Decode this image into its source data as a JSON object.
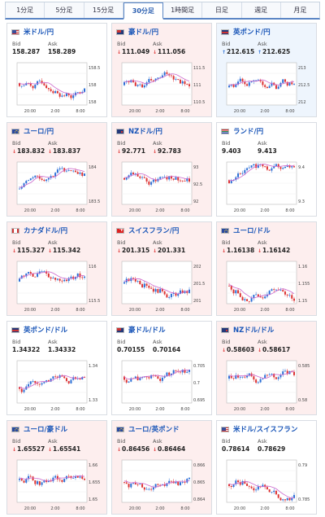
{
  "tabs": [
    {
      "label": "1分足",
      "active": false
    },
    {
      "label": "5分足",
      "active": false
    },
    {
      "label": "15分足",
      "active": false
    },
    {
      "label": "30分足",
      "active": true
    },
    {
      "label": "1時間足",
      "active": false
    },
    {
      "label": "日足",
      "active": false
    },
    {
      "label": "週足",
      "active": false
    },
    {
      "label": "月足",
      "active": false
    }
  ],
  "labels": {
    "bid": "Bid",
    "ask": "Ask"
  },
  "colors": {
    "up_candle": "#2b6fd6",
    "down_candle": "#d33",
    "ma_line": "#cc66cc",
    "up_bg": "#eef5fd",
    "down_bg": "#fdeeee"
  },
  "pairs": [
    {
      "name": "米ドル/円",
      "flag": "us",
      "bid": "158.287",
      "ask": "158.289",
      "trend": "none",
      "ticks": [
        "158.5",
        "158",
        "158"
      ],
      "times": [
        "20:00",
        "2:00",
        "8:00"
      ]
    },
    {
      "name": "豪ドル/円",
      "flag": "au",
      "bid": "111.049",
      "ask": "111.056",
      "trend": "down",
      "ticks": [
        "111.5",
        "111",
        "110.5"
      ],
      "times": [
        "20:00",
        "2:00",
        "8:00"
      ]
    },
    {
      "name": "英ポンド/円",
      "flag": "gb",
      "bid": "212.615",
      "ask": "212.625",
      "trend": "up",
      "ticks": [
        "213",
        "212.5",
        "212"
      ],
      "times": [
        "20:00",
        "2:00",
        "8:00"
      ]
    },
    {
      "name": "ユーロ/円",
      "flag": "eu",
      "bid": "183.832",
      "ask": "183.837",
      "trend": "down",
      "ticks": [
        "184",
        "183.5"
      ],
      "times": [
        "20:00",
        "2:00",
        "8:00"
      ]
    },
    {
      "name": "NZドル/円",
      "flag": "nz",
      "bid": "92.771",
      "ask": "92.783",
      "trend": "down",
      "ticks": [
        "93",
        "92.5",
        "92"
      ],
      "times": [
        "20:00",
        "2:00",
        "8:00"
      ]
    },
    {
      "name": "ランド/円",
      "flag": "za",
      "bid": "9.403",
      "ask": "9.413",
      "trend": "none",
      "ticks": [
        "9.4",
        "9.3"
      ],
      "times": [
        "20:00",
        "2:00",
        "8:00"
      ]
    },
    {
      "name": "カナダドル/円",
      "flag": "ca",
      "bid": "115.327",
      "ask": "115.342",
      "trend": "down",
      "ticks": [
        "116",
        "115.5"
      ],
      "times": [
        "20:00",
        "2:00",
        "8:00"
      ]
    },
    {
      "name": "スイスフラン/円",
      "flag": "ch",
      "bid": "201.315",
      "ask": "201.331",
      "trend": "down",
      "ticks": [
        "202",
        "201.5",
        "201"
      ],
      "times": [
        "20:00",
        "2:00",
        "8:00"
      ]
    },
    {
      "name": "ユーロ/ドル",
      "flag": "eu",
      "bid": "1.16138",
      "ask": "1.16142",
      "trend": "down",
      "ticks": [
        "1.16",
        "1.155",
        "1.15"
      ],
      "times": [
        "20:00",
        "2:00",
        "8:00"
      ]
    },
    {
      "name": "英ポンド/ドル",
      "flag": "gb",
      "bid": "1.34322",
      "ask": "1.34332",
      "trend": "none",
      "ticks": [
        "1.34",
        "1.33"
      ],
      "times": [
        "20:00",
        "2:00",
        "8:00"
      ]
    },
    {
      "name": "豪ドル/ドル",
      "flag": "au",
      "bid": "0.70155",
      "ask": "0.70164",
      "trend": "none",
      "ticks": [
        "0.705",
        "0.7",
        "0.695"
      ],
      "times": [
        "20:00",
        "2:00",
        "8:00"
      ]
    },
    {
      "name": "NZドル/ドル",
      "flag": "nz",
      "bid": "0.58603",
      "ask": "0.58617",
      "trend": "down",
      "ticks": [
        "0.585",
        "0.58"
      ],
      "times": [
        "20:00",
        "2:00",
        "8:00"
      ]
    },
    {
      "name": "ユーロ/豪ドル",
      "flag": "eu",
      "bid": "1.65527",
      "ask": "1.65541",
      "trend": "down",
      "ticks": [
        "1.66",
        "1.655",
        "1.65"
      ],
      "times": [
        "20:00",
        "2:00",
        "8:00"
      ]
    },
    {
      "name": "ユーロ/英ポンド",
      "flag": "eu",
      "bid": "0.86456",
      "ask": "0.86464",
      "trend": "down",
      "ticks": [
        "0.866",
        "0.865",
        "0.864"
      ],
      "times": [
        "20:00",
        "2:00",
        "8:00"
      ]
    },
    {
      "name": "米ドル/スイスフラン",
      "flag": "us",
      "bid": "0.78614",
      "ask": "0.78629",
      "trend": "none",
      "ticks": [
        "0.79",
        "0.785"
      ],
      "times": [
        "20:00",
        "2:00",
        "8:00"
      ]
    }
  ]
}
